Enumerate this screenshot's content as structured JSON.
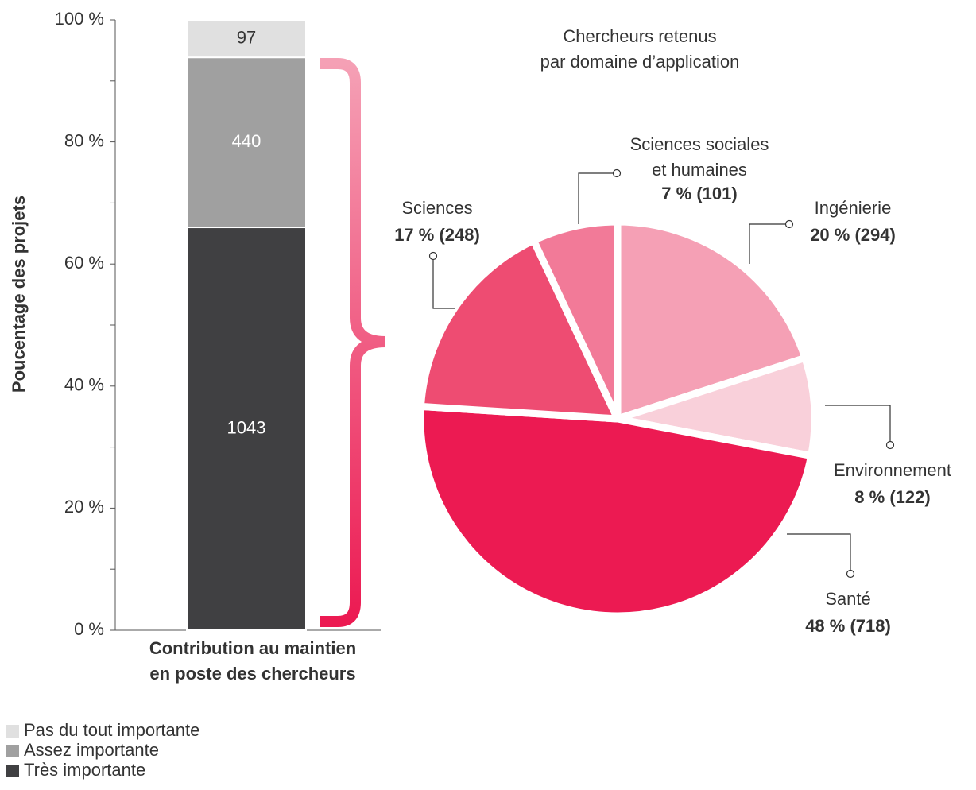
{
  "chart_data": [
    {
      "type": "bar",
      "stacking": "percent",
      "ylabel": "Poucentage des projets",
      "categories": [
        "Contribution au maintien\nen poste des chercheurs"
      ],
      "series": [
        {
          "name": "Pas du tout importante",
          "color": "#e0e0e0",
          "values": [
            97
          ]
        },
        {
          "name": "Assez importante",
          "color": "#a0a0a0",
          "values": [
            440
          ]
        },
        {
          "name": "Très importante",
          "color": "#404042",
          "values": [
            1043
          ]
        }
      ],
      "ylim": [
        0,
        100
      ],
      "yticks": [
        {
          "value": 0,
          "label": "0 %"
        },
        {
          "value": 20,
          "label": "20 %"
        },
        {
          "value": 40,
          "label": "40 %"
        },
        {
          "value": 60,
          "label": "60 %"
        },
        {
          "value": 80,
          "label": "80 %"
        },
        {
          "value": 100,
          "label": "100 %"
        }
      ],
      "yminor_ticks": [
        10,
        30,
        50,
        70,
        90
      ],
      "legend": "bottom-left"
    },
    {
      "type": "pie",
      "title": "Chercheurs retenus\npar domaine d’application",
      "categories": [
        "Ingénierie",
        "Environnement",
        "Santé",
        "Sciences",
        "Sciences sociales\net humaines"
      ],
      "values": [
        20,
        8,
        48,
        17,
        7
      ],
      "value_labels": [
        "20 % (294)",
        "8 % (122)",
        "48 % (718)",
        "17 % (248)",
        "7 % (101)"
      ],
      "colors": [
        "#f5a0b5",
        "#f9d0da",
        "#ec1a52",
        "#ee4c72",
        "#f27a98"
      ]
    }
  ]
}
